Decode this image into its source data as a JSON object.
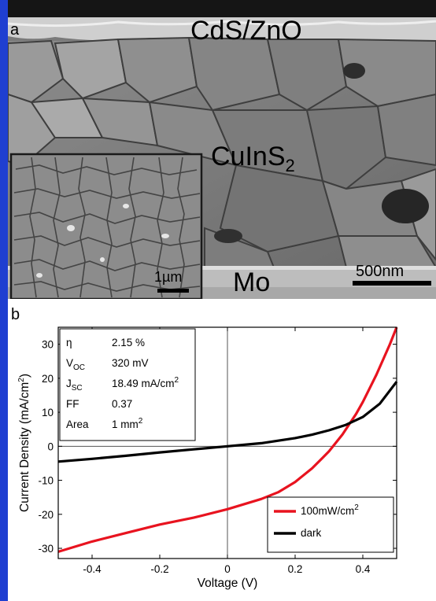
{
  "panel_a": {
    "letter": "a",
    "label_top": "CdS/ZnO",
    "label_middle": "CuInS",
    "label_middle_sub": "2",
    "label_bottom": "Mo",
    "scalebar_main": "500nm",
    "scalebar_inset": "1µm"
  },
  "panel_b": {
    "letter": "b",
    "info": [
      {
        "key": "η",
        "key_sub": "",
        "value": "2.15 %",
        "value_sup": ""
      },
      {
        "key": "V",
        "key_sub": "OC",
        "value": "320 mV",
        "value_sup": ""
      },
      {
        "key": "J",
        "key_sub": "SC",
        "value": "18.49 mA/cm",
        "value_sup": "2"
      },
      {
        "key": "FF",
        "key_sub": "",
        "value": "0.37",
        "value_sup": ""
      },
      {
        "key": "Area",
        "key_sub": "",
        "value": "1 mm",
        "value_sup": "2"
      }
    ]
  },
  "colors": {
    "frame": "#1f3fd1",
    "illuminated": "#e8131f",
    "dark": "#000000"
  },
  "chart_data": {
    "type": "line",
    "xlabel": "Voltage (V)",
    "ylabel": "Current Density (mA/cm",
    "ylabel_sup": "2",
    "ylabel_end": ")",
    "xlim": [
      -0.5,
      0.5
    ],
    "ylim": [
      -33,
      35
    ],
    "xticks": [
      -0.4,
      -0.2,
      0,
      0.2,
      0.4
    ],
    "xtick_labels": [
      "-0.4",
      "-0.2",
      "0",
      "0.2",
      "0.4"
    ],
    "yticks": [
      -30,
      -20,
      -10,
      0,
      10,
      20,
      30
    ],
    "ytick_labels": [
      "-30",
      "-20",
      "-10",
      "0",
      "10",
      "20",
      "30"
    ],
    "legend_position": "bottom-right",
    "series": [
      {
        "name": "100mW/cm",
        "name_sup": "2",
        "color": "#e8131f",
        "x": [
          -0.5,
          -0.4,
          -0.3,
          -0.2,
          -0.1,
          0.0,
          0.1,
          0.15,
          0.2,
          0.25,
          0.28,
          0.3,
          0.32,
          0.34,
          0.36,
          0.38,
          0.4,
          0.42,
          0.44,
          0.46,
          0.48,
          0.5
        ],
        "y": [
          -31,
          -28,
          -25.5,
          -23,
          -21,
          -18.5,
          -15.5,
          -13.5,
          -10.5,
          -6.5,
          -3.5,
          -1.5,
          1,
          3.5,
          6.5,
          9.5,
          13,
          17,
          21,
          25.5,
          30,
          35
        ]
      },
      {
        "name": "dark",
        "name_sup": "",
        "color": "#000000",
        "x": [
          -0.5,
          -0.4,
          -0.3,
          -0.2,
          -0.1,
          0.0,
          0.1,
          0.2,
          0.25,
          0.3,
          0.35,
          0.4,
          0.45,
          0.5
        ],
        "y": [
          -4.5,
          -3.7,
          -2.8,
          -1.8,
          -0.9,
          0,
          0.9,
          2.4,
          3.4,
          4.7,
          6.3,
          8.6,
          12.5,
          19
        ]
      }
    ]
  }
}
